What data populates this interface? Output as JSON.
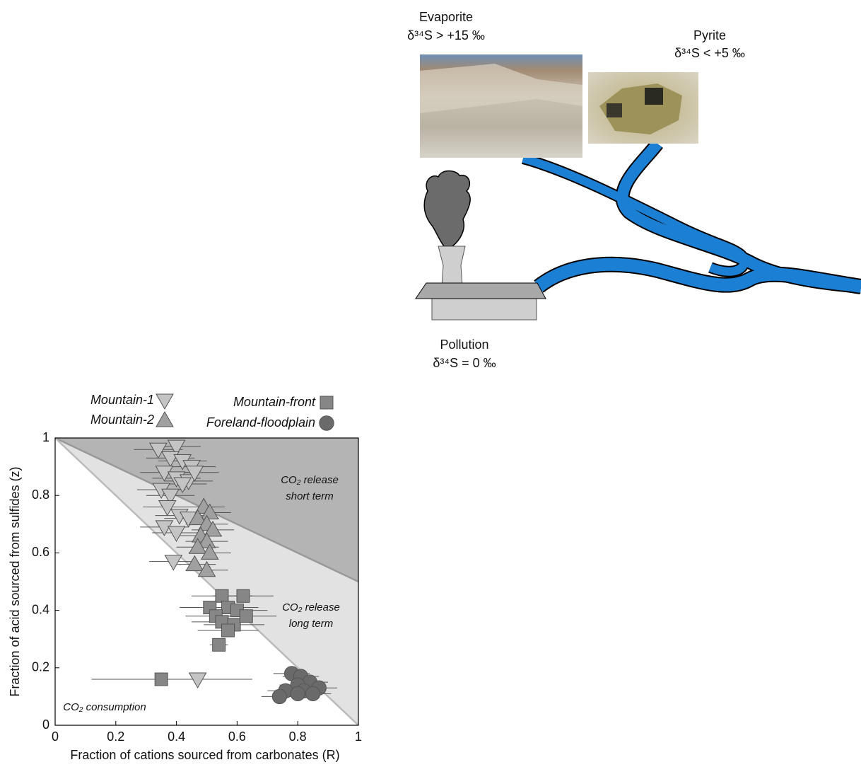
{
  "diagram": {
    "sources": [
      {
        "name": "Evaporite",
        "isotope": "δ³⁴S > +15 ‰"
      },
      {
        "name": "Pyrite",
        "isotope": "δ³⁴S < +5 ‰"
      },
      {
        "name": "Pollution",
        "isotope": "δ³⁴S = 0 ‰"
      }
    ]
  },
  "chart_data": {
    "type": "scatter",
    "xlabel": "Fraction of cations sourced from carbonates (R)",
    "ylabel": "Fraction of acid sourced from sulfides (z)",
    "xlim": [
      0,
      1
    ],
    "ylim": [
      0,
      1
    ],
    "xticks": [
      0,
      0.2,
      0.4,
      0.6,
      0.8,
      1
    ],
    "yticks": [
      0,
      0.2,
      0.4,
      0.6,
      0.8,
      1
    ],
    "boundaries": [
      {
        "x": [
          0,
          1
        ],
        "y": [
          1,
          0.5
        ],
        "color": "#999999"
      },
      {
        "x": [
          0,
          1
        ],
        "y": [
          1,
          0
        ],
        "color": "#bbbbbb"
      }
    ],
    "regions": [
      {
        "color": "#b4b4b4"
      },
      {
        "color": "#e2e2e2"
      }
    ],
    "annotations": [
      {
        "lines": [
          "CO₂ release",
          "short term"
        ]
      },
      {
        "lines": [
          "CO₂ release",
          "long term"
        ]
      },
      {
        "lines": [
          "CO₂ consumption"
        ]
      }
    ],
    "series": [
      {
        "name": "Mountain-1",
        "marker": "triangle-down",
        "color": "#c4c4c4",
        "x": [
          0.34,
          0.4,
          0.38,
          0.42,
          0.45,
          0.36,
          0.4,
          0.44,
          0.35,
          0.38,
          0.42,
          0.46,
          0.37,
          0.41,
          0.36,
          0.4,
          0.44,
          0.39,
          0.47
        ],
        "y": [
          0.96,
          0.97,
          0.93,
          0.92,
          0.9,
          0.88,
          0.86,
          0.85,
          0.82,
          0.8,
          0.84,
          0.88,
          0.76,
          0.73,
          0.69,
          0.67,
          0.72,
          0.57,
          0.16
        ],
        "xerr": [
          0.08,
          0.08,
          0.08,
          0.08,
          0.08,
          0.08,
          0.08,
          0.08,
          0.08,
          0.08,
          0.08,
          0.08,
          0.08,
          0.08,
          0.08,
          0.08,
          0.08,
          0.08,
          0.18
        ]
      },
      {
        "name": "Mountain-2",
        "marker": "triangle-up",
        "color": "#a0a0a0",
        "x": [
          0.49,
          0.51,
          0.47,
          0.5,
          0.52,
          0.48,
          0.5,
          0.47,
          0.51,
          0.46,
          0.5
        ],
        "y": [
          0.76,
          0.74,
          0.72,
          0.7,
          0.68,
          0.66,
          0.64,
          0.62,
          0.6,
          0.56,
          0.54
        ],
        "xerr": [
          0.07,
          0.07,
          0.07,
          0.07,
          0.07,
          0.07,
          0.07,
          0.07,
          0.07,
          0.07,
          0.07
        ]
      },
      {
        "name": "Mountain-front",
        "marker": "square",
        "color": "#868686",
        "x": [
          0.55,
          0.62,
          0.51,
          0.57,
          0.6,
          0.53,
          0.55,
          0.59,
          0.63,
          0.57,
          0.54,
          0.35
        ],
        "y": [
          0.45,
          0.45,
          0.41,
          0.41,
          0.4,
          0.38,
          0.36,
          0.35,
          0.38,
          0.33,
          0.28,
          0.16
        ],
        "xerr": [
          0.1,
          0.1,
          0.1,
          0.1,
          0.1,
          0.1,
          0.1,
          0.1,
          0.1,
          0.1,
          0.03,
          0.23
        ]
      },
      {
        "name": "Foreland-floodplain",
        "marker": "circle",
        "color": "#6a6a6a",
        "x": [
          0.78,
          0.81,
          0.84,
          0.8,
          0.87,
          0.76,
          0.82,
          0.85,
          0.74,
          0.8
        ],
        "y": [
          0.18,
          0.17,
          0.15,
          0.14,
          0.13,
          0.12,
          0.12,
          0.11,
          0.1,
          0.11
        ],
        "xerr": [
          0.06,
          0.06,
          0.06,
          0.06,
          0.06,
          0.06,
          0.06,
          0.06,
          0.06,
          0.06
        ]
      }
    ]
  }
}
